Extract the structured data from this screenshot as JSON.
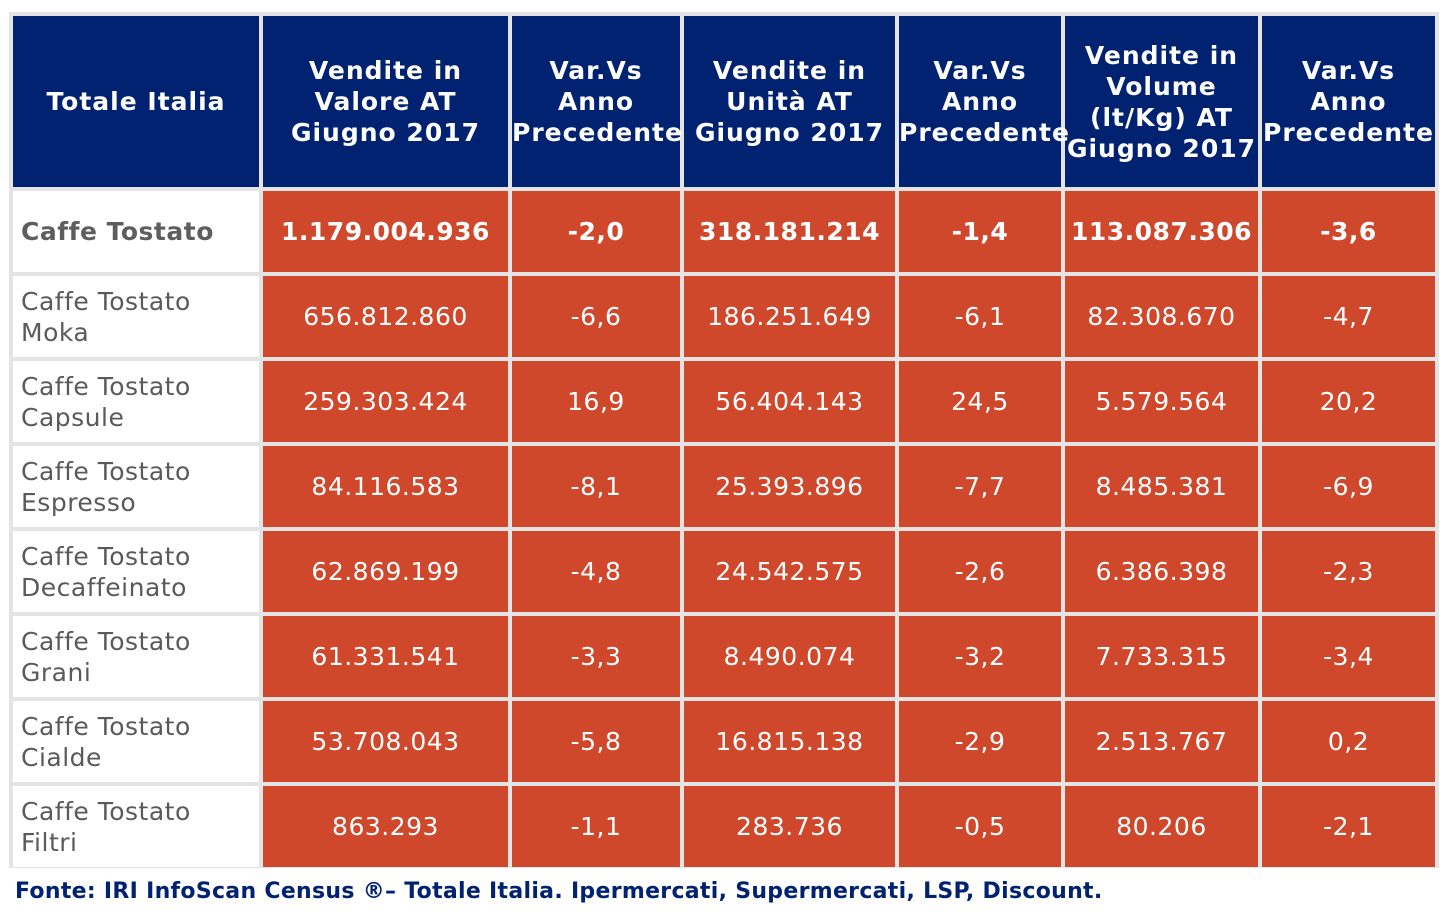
{
  "chart_data": {
    "type": "table",
    "columns": [
      "Totale Italia",
      "Vendite in\nValore AT\nGiugno 2017",
      "Var.Vs\nAnno\nPrecedente",
      "Vendite in\nUnità AT\nGiugno 2017",
      "Var.Vs\nAnno\nPrecedente",
      "Vendite in\nVolume\n(lt/Kg) AT\nGiugno 2017",
      "Var.Vs\nAnno\nPrecedente"
    ],
    "rows": [
      {
        "label": "Caffe Tostato",
        "values": [
          "1.179.004.936",
          "-2,0",
          "318.181.214",
          "-1,4",
          "113.087.306",
          "-3,6"
        ]
      },
      {
        "label": "Caffe Tostato\nMoka",
        "values": [
          "656.812.860",
          "-6,6",
          "186.251.649",
          "-6,1",
          "82.308.670",
          "-4,7"
        ]
      },
      {
        "label": "Caffe Tostato\nCapsule",
        "values": [
          "259.303.424",
          "16,9",
          "56.404.143",
          "24,5",
          "5.579.564",
          "20,2"
        ]
      },
      {
        "label": "Caffe Tostato\nEspresso",
        "values": [
          "84.116.583",
          "-8,1",
          "25.393.896",
          "-7,7",
          "8.485.381",
          "-6,9"
        ]
      },
      {
        "label": "Caffe Tostato\nDecaffeinato",
        "values": [
          "62.869.199",
          "-4,8",
          "24.542.575",
          "-2,6",
          "6.386.398",
          "-2,3"
        ]
      },
      {
        "label": "Caffe Tostato\nGrani",
        "values": [
          "61.331.541",
          "-3,3",
          "8.490.074",
          "-3,2",
          "7.733.315",
          "-3,4"
        ]
      },
      {
        "label": "Caffe Tostato\nCialde",
        "values": [
          "53.708.043",
          "-5,8",
          "16.815.138",
          "-2,9",
          "2.513.767",
          "0,2"
        ]
      },
      {
        "label": "Caffe Tostato\nFiltri",
        "values": [
          "863.293",
          "-1,1",
          "283.736",
          "-0,5",
          "80.206",
          "-2,1"
        ]
      }
    ]
  },
  "source": {
    "label": "Fonte",
    "text": ": IRI InfoScan Census ®– Totale Italia. Ipermercati, Supermercati, LSP, Discount."
  },
  "colors": {
    "header_bg": "#002270",
    "value_bg": "#d0482c",
    "grid": "#e4e4e4",
    "label_text": "#5a5a5a",
    "source_text": "#002270"
  }
}
